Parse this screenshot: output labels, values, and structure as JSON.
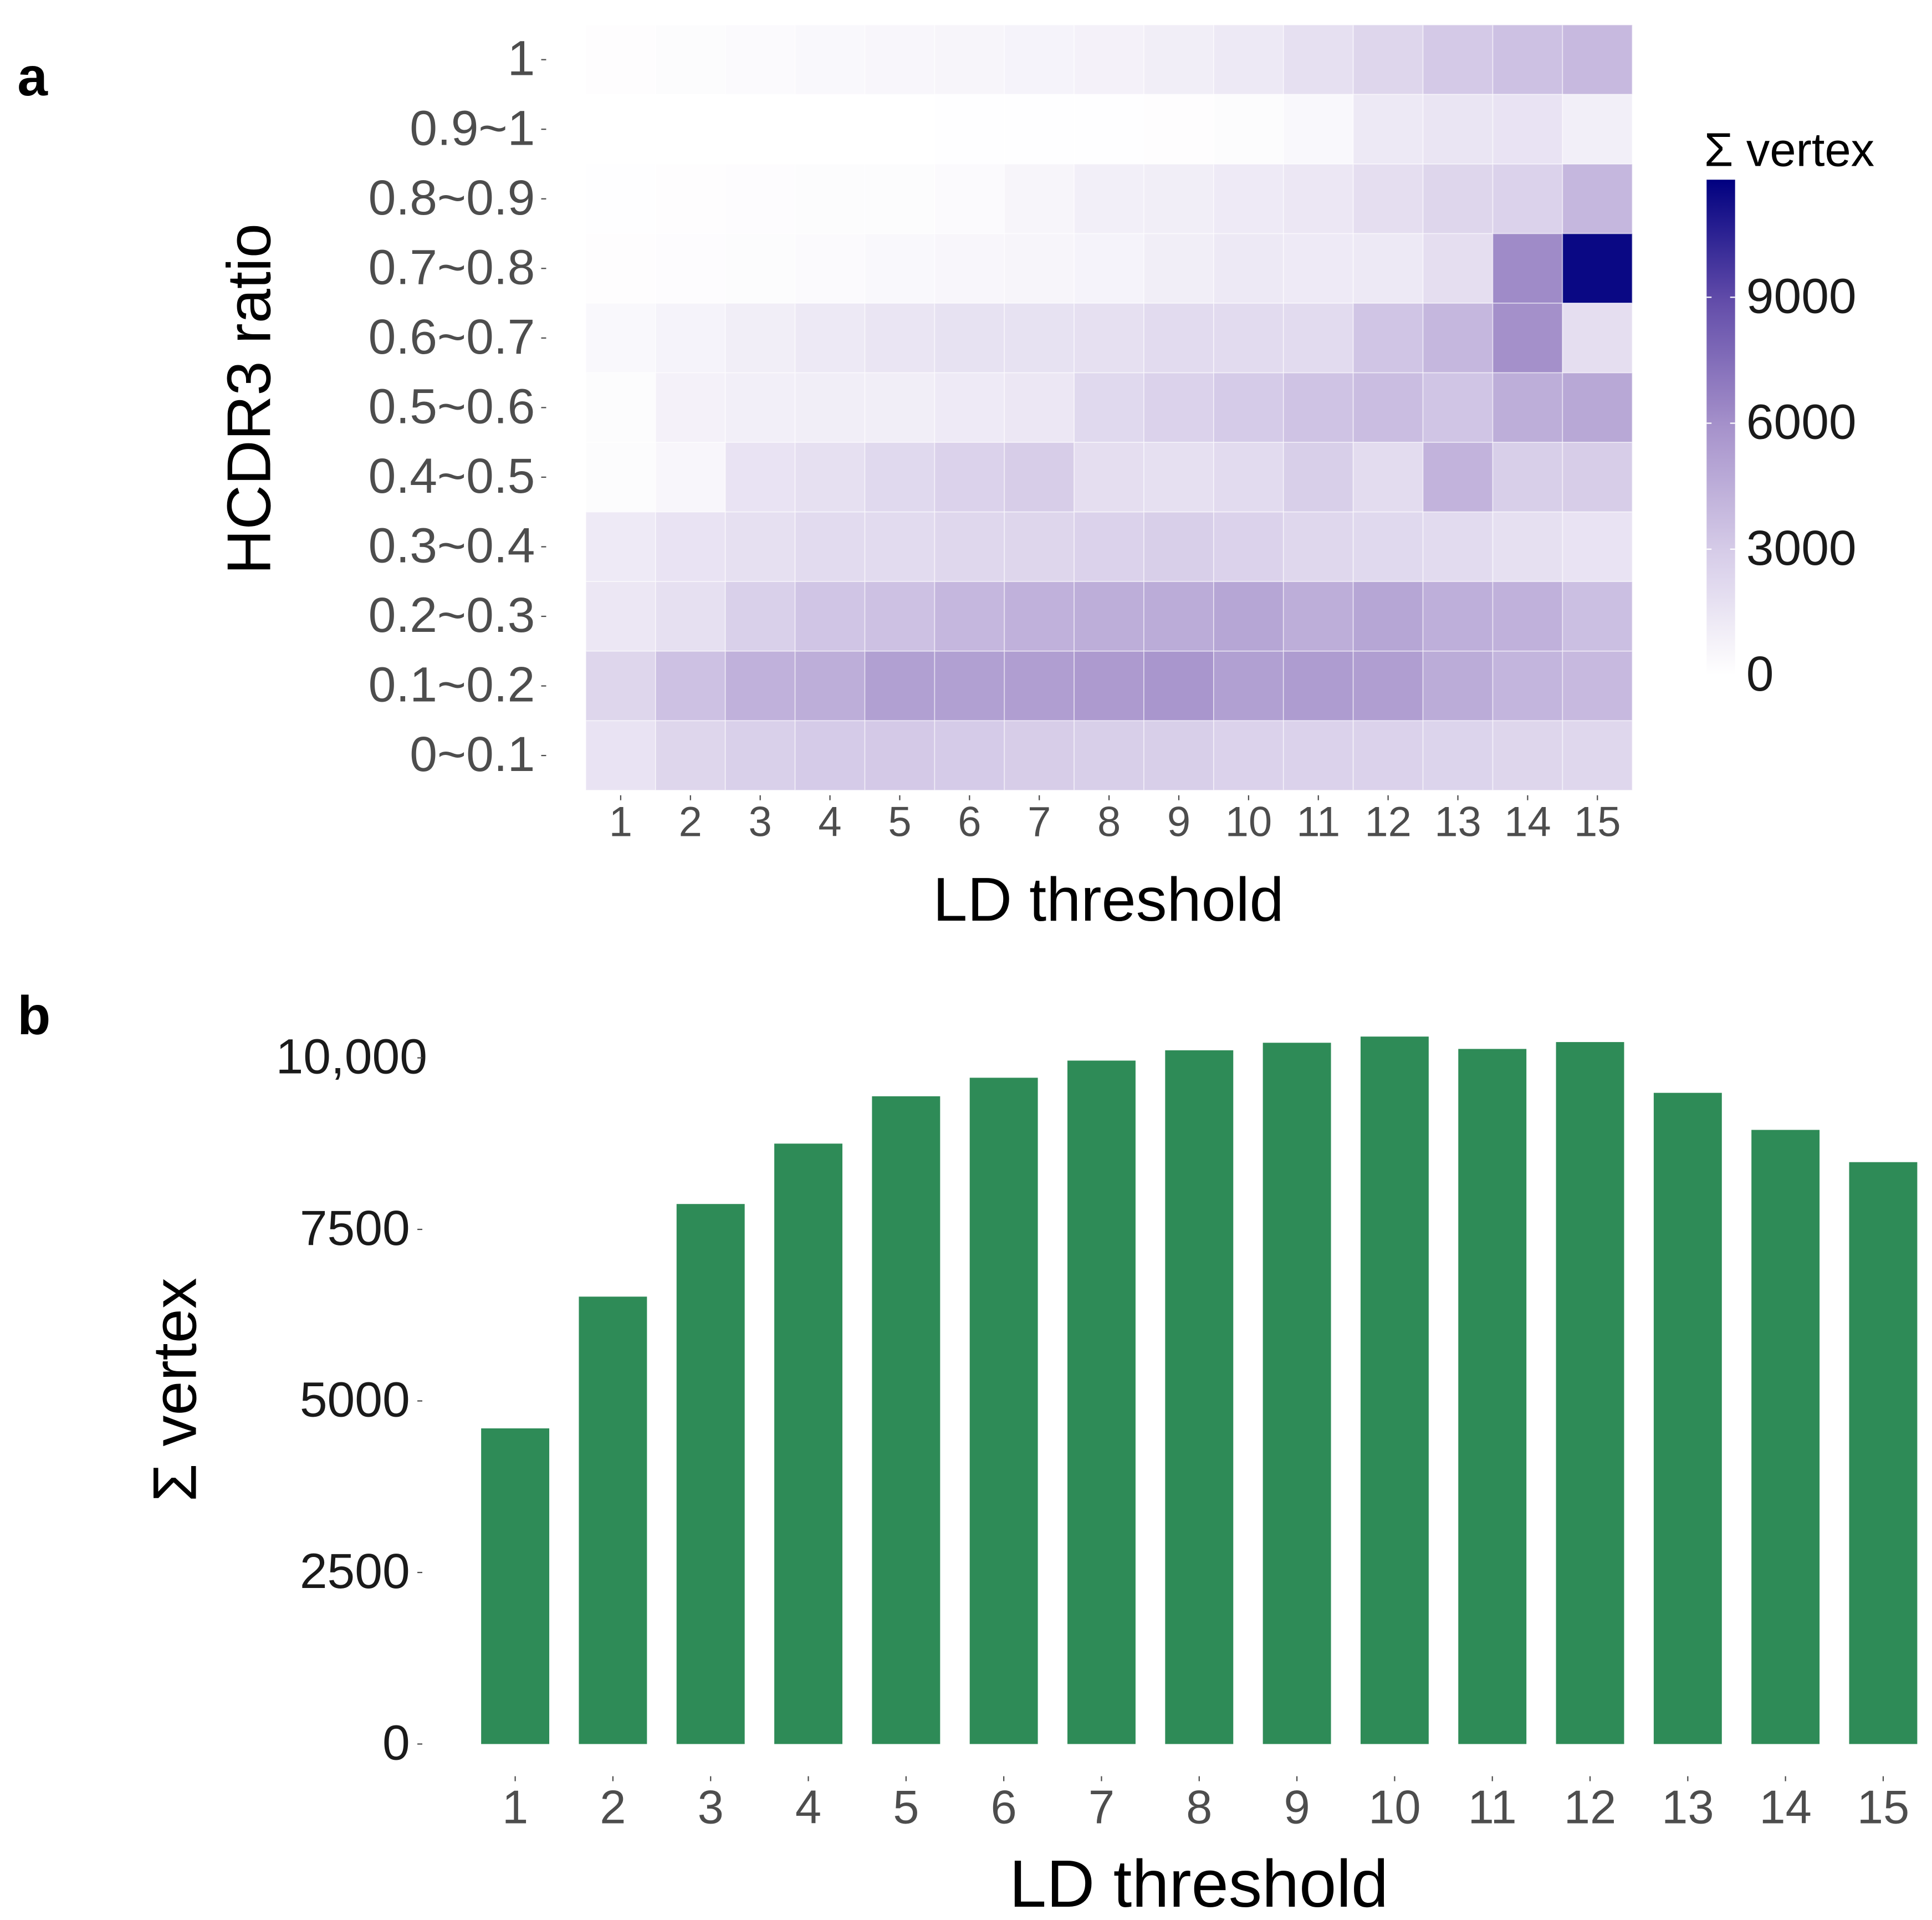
{
  "chart_data": [
    {
      "panel": "a",
      "type": "heatmap",
      "xlabel": "LD threshold",
      "ylabel": "HCDR3 ratio",
      "x_categories": [
        "1",
        "2",
        "3",
        "4",
        "5",
        "6",
        "7",
        "8",
        "9",
        "10",
        "11",
        "12",
        "13",
        "14",
        "15"
      ],
      "y_categories": [
        "1",
        "0.9~1",
        "0.8~0.9",
        "0.7~0.8",
        "0.6~0.7",
        "0.5~0.6",
        "0.4~0.5",
        "0.3~0.4",
        "0.2~0.3",
        "0.1~0.2",
        "0~0.1"
      ],
      "values": [
        [
          100,
          200,
          300,
          400,
          500,
          600,
          700,
          800,
          1000,
          1300,
          1800,
          2400,
          3100,
          3500,
          3900
        ],
        [
          0,
          0,
          0,
          0,
          0,
          50,
          50,
          50,
          100,
          200,
          400,
          1300,
          1500,
          1600,
          900
        ],
        [
          50,
          100,
          150,
          200,
          200,
          300,
          600,
          900,
          1000,
          1200,
          1400,
          1900,
          2400,
          2600,
          4000
        ],
        [
          100,
          150,
          200,
          300,
          400,
          500,
          600,
          700,
          1000,
          1300,
          1200,
          1300,
          1900,
          6200,
          11500
        ],
        [
          400,
          700,
          1000,
          1300,
          1500,
          1700,
          1700,
          1800,
          2100,
          2100,
          2100,
          3300,
          4000,
          6000,
          1900
        ],
        [
          200,
          800,
          900,
          1000,
          1000,
          1200,
          1400,
          2200,
          2600,
          3000,
          3400,
          3700,
          3300,
          4500,
          4800
        ],
        [
          200,
          500,
          1600,
          1800,
          2200,
          2600,
          2900,
          1900,
          1800,
          2100,
          2800,
          2000,
          4200,
          2800,
          2900
        ],
        [
          1200,
          1600,
          1800,
          2100,
          2100,
          2300,
          2400,
          2600,
          2800,
          2600,
          2300,
          2200,
          2100,
          1800,
          1600
        ],
        [
          1400,
          1800,
          2700,
          3300,
          3500,
          4000,
          4300,
          4500,
          4600,
          4900,
          4500,
          4900,
          4400,
          4300,
          3600
        ],
        [
          2400,
          3500,
          4300,
          4500,
          5200,
          5200,
          5300,
          5500,
          5700,
          5200,
          5400,
          5300,
          4600,
          4100,
          3900
        ],
        [
          1600,
          2400,
          2700,
          3000,
          3100,
          3000,
          2900,
          2800,
          2800,
          2600,
          2600,
          2600,
          2500,
          2400,
          2300
        ]
      ],
      "legend": {
        "title": "Σ vertex",
        "ticks": [
          "0",
          "3000",
          "6000",
          "9000"
        ],
        "tick_values": [
          0,
          3000,
          6000,
          9000
        ],
        "range": [
          0,
          11800
        ],
        "low_color": "#ffffff",
        "high_color": "#000080",
        "placement": "right"
      }
    },
    {
      "panel": "b",
      "type": "bar",
      "xlabel": "LD threshold",
      "ylabel": "Σ vertex",
      "categories": [
        "1",
        "2",
        "3",
        "4",
        "5",
        "6",
        "7",
        "8",
        "9",
        "10",
        "11",
        "12",
        "13",
        "14",
        "15"
      ],
      "values": [
        4600,
        6520,
        7870,
        8750,
        9440,
        9710,
        9960,
        10110,
        10220,
        10310,
        10130,
        10230,
        9490,
        8950,
        8480
      ],
      "yticks": [
        "0",
        "2500",
        "5000",
        "7500",
        "10,000"
      ],
      "ytick_values": [
        0,
        2500,
        5000,
        7500,
        10000
      ],
      "ylim": [
        0,
        10400
      ],
      "color": "#2e8b57"
    }
  ]
}
